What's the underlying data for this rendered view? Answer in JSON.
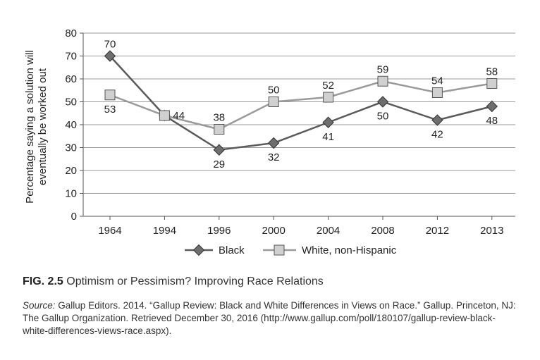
{
  "chart_data": {
    "type": "line",
    "categories": [
      "1964",
      "1994",
      "1996",
      "2000",
      "2004",
      "2008",
      "2012",
      "2013"
    ],
    "series": [
      {
        "name": "Black",
        "values": [
          70,
          44,
          29,
          32,
          41,
          50,
          42,
          48
        ],
        "color": "#5a5a5a",
        "marker": "diamond"
      },
      {
        "name": "White, non-Hispanic",
        "values": [
          53,
          44,
          38,
          50,
          52,
          59,
          54,
          58
        ],
        "color": "#9a9a9a",
        "marker": "square"
      }
    ],
    "data_labels": {
      "Black": [
        "70",
        "",
        "29",
        "32",
        "41",
        "50",
        "42",
        "48"
      ],
      "White, non-Hispanic": [
        "53",
        "44",
        "38",
        "50",
        "52",
        "59",
        "54",
        "58"
      ]
    },
    "ylabel": "Percentage saying a solution will eventually be worked out",
    "ylabel_lines": [
      "Percentage saying a solution will",
      "eventually be worked out"
    ],
    "xlabel": "",
    "ylim": [
      0,
      80
    ],
    "yticks": [
      0,
      10,
      20,
      30,
      40,
      50,
      60,
      70,
      80
    ],
    "grid": true,
    "legend": "bottom-center"
  },
  "caption": {
    "figure_label": "FIG. 2.5",
    "title": "Optimism or Pessimism? Improving Race Relations"
  },
  "source": {
    "label": "Source:",
    "text": "Gallup Editors. 2014. “Gallup Review: Black and White Differences in Views on Race.” Gallup. Princeton, NJ: The Gallup Organization. Retrieved December 30, 2016 (http://www.gallup.com/poll/180107/gallup-review-black-white-differences-views-race.aspx)."
  }
}
